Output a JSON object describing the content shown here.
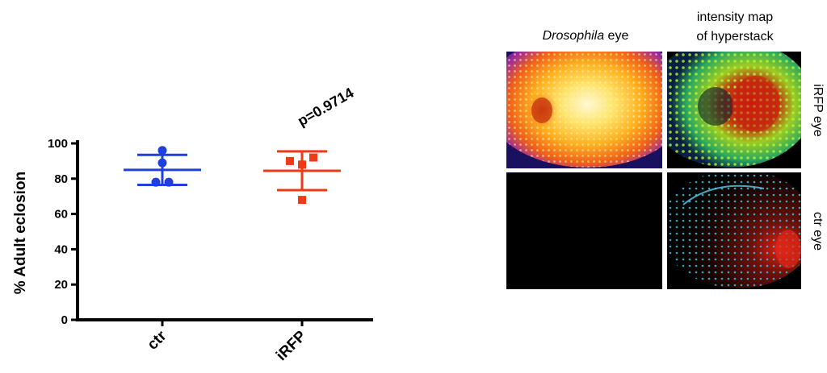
{
  "chart_data": {
    "type": "scatter",
    "ylabel": "% Adult eclosion",
    "ylim": [
      0,
      100
    ],
    "yticks": [
      "0",
      "20",
      "40",
      "60",
      "80",
      "100"
    ],
    "categories": [
      "ctr",
      "iRFP"
    ],
    "annotation": "p=0.9714",
    "series": [
      {
        "category": "ctr",
        "points": [
          96,
          89,
          78,
          78
        ],
        "mean": 85,
        "sd_high": 93.5,
        "sd_low": 76.5,
        "color": "#1f3fe0",
        "marker": "circle"
      },
      {
        "category": "iRFP",
        "points": [
          90,
          88,
          92,
          68
        ],
        "mean": 84.5,
        "sd_high": 95.5,
        "sd_low": 73.5,
        "color": "#f03a17",
        "marker": "square"
      }
    ]
  },
  "image_panel": {
    "col_headers": {
      "left_prefix": "Drosophila",
      "left_suffix": " eye",
      "right_line1": "intensity map",
      "right_line2": "of hyperstack"
    },
    "row_labels": [
      "iRFP eye",
      "ctr eye"
    ]
  }
}
